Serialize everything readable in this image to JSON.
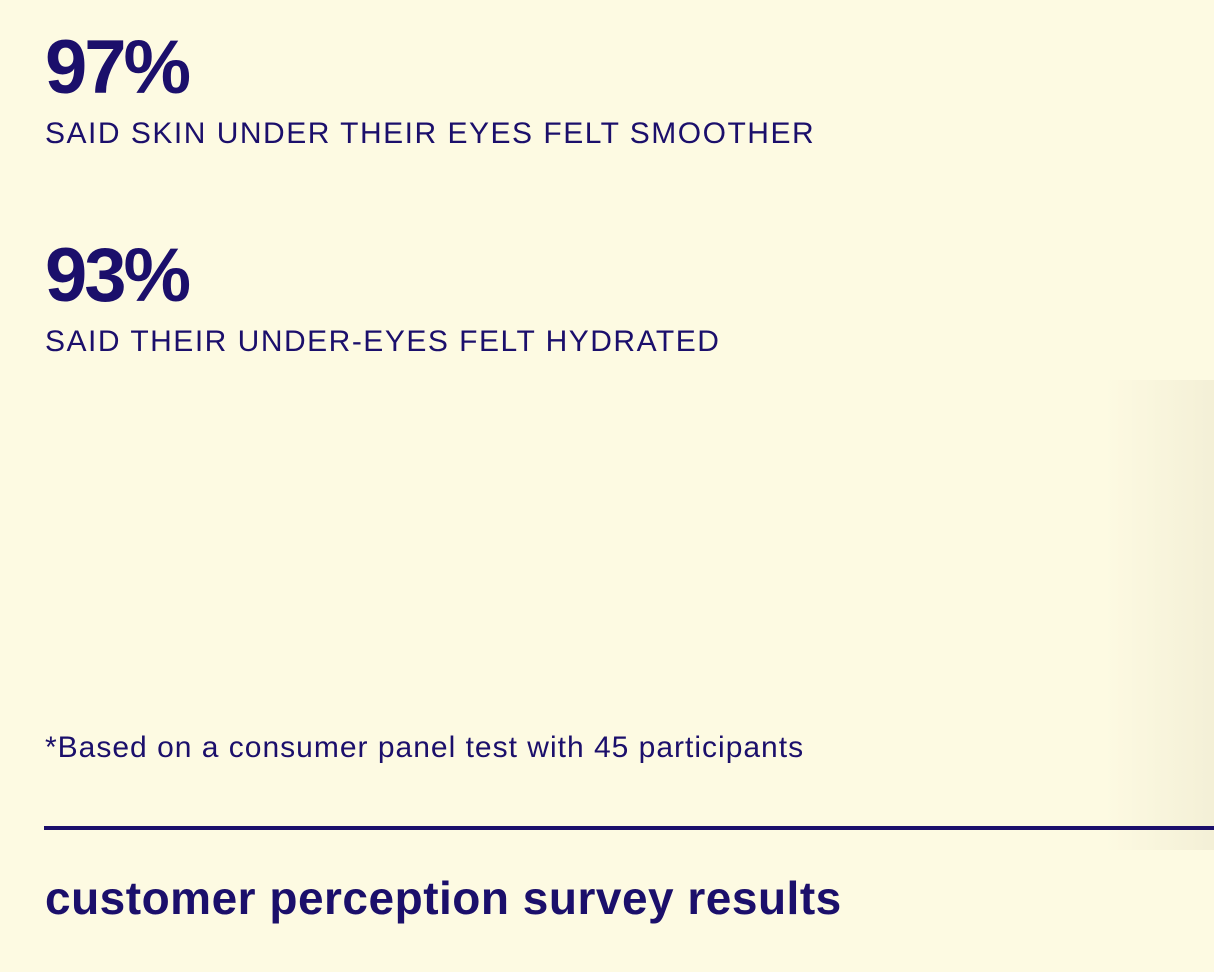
{
  "colors": {
    "background": "#fdfae2",
    "text": "#1b0f6b"
  },
  "stats": [
    {
      "value": "97%",
      "label": "SAID SKIN UNDER THEIR EYES FELT SMOOTHER"
    },
    {
      "value": "93%",
      "label": "SAID THEIR UNDER-EYES FELT HYDRATED"
    }
  ],
  "footnote": "*Based on a consumer panel test with 45 participants",
  "section": {
    "title": "customer perception survey results"
  }
}
